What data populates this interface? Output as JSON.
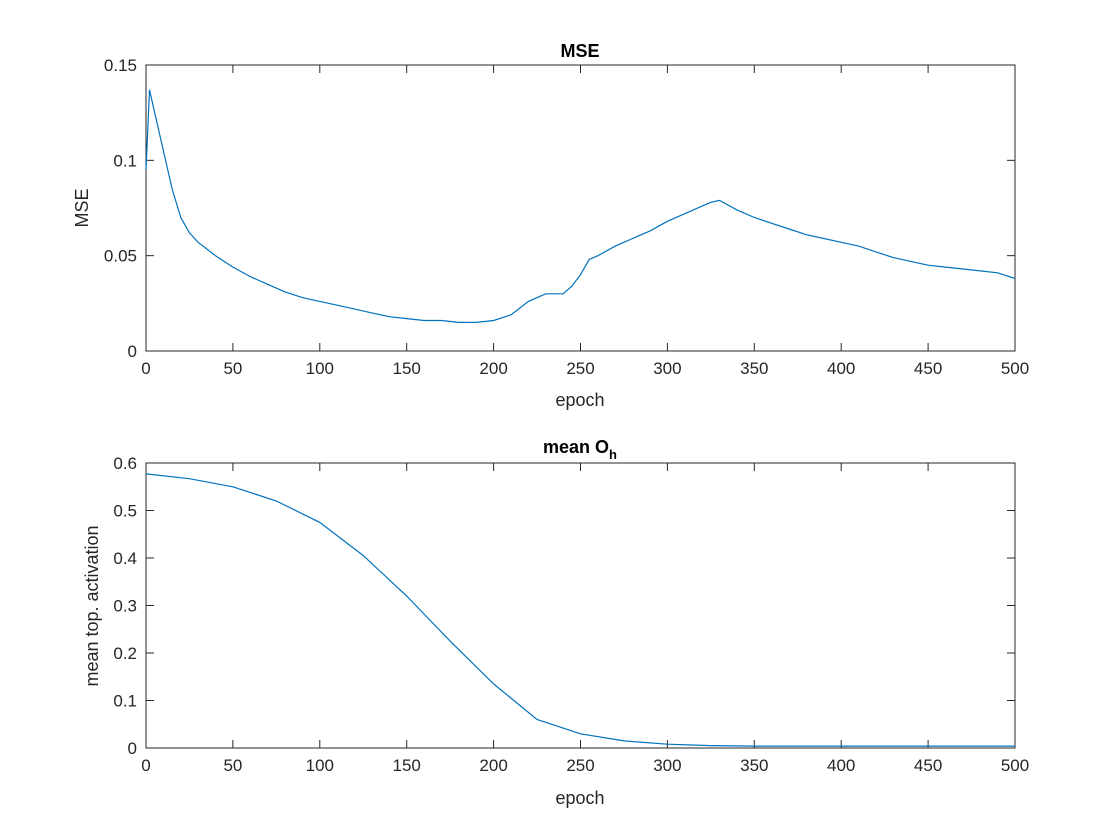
{
  "line_color": "#0072BD",
  "chart_data": [
    {
      "type": "line",
      "title": "MSE",
      "xlabel": "epoch",
      "ylabel": "MSE",
      "xlim": [
        0,
        500
      ],
      "ylim": [
        0,
        0.15
      ],
      "xticks": [
        0,
        50,
        100,
        150,
        200,
        250,
        300,
        350,
        400,
        450,
        500
      ],
      "yticks": [
        0,
        0.05,
        0.1,
        0.15
      ],
      "ytick_labels": [
        "0",
        "0.05",
        "0.1",
        "0.15"
      ],
      "grid": false,
      "series": [
        {
          "x": [
            0,
            2,
            5,
            10,
            15,
            20,
            25,
            30,
            40,
            50,
            60,
            70,
            80,
            90,
            100,
            110,
            120,
            130,
            140,
            150,
            160,
            170,
            180,
            190,
            200,
            210,
            220,
            230,
            240,
            245,
            250,
            255,
            260,
            270,
            280,
            290,
            300,
            310,
            320,
            325,
            330,
            340,
            350,
            360,
            370,
            380,
            390,
            400,
            410,
            420,
            430,
            440,
            450,
            460,
            470,
            480,
            490,
            500
          ],
          "y": [
            0.095,
            0.137,
            0.125,
            0.105,
            0.085,
            0.07,
            0.062,
            0.057,
            0.05,
            0.044,
            0.039,
            0.035,
            0.031,
            0.028,
            0.026,
            0.024,
            0.022,
            0.02,
            0.018,
            0.017,
            0.016,
            0.016,
            0.015,
            0.015,
            0.016,
            0.019,
            0.026,
            0.03,
            0.03,
            0.034,
            0.04,
            0.048,
            0.05,
            0.055,
            0.059,
            0.063,
            0.068,
            0.072,
            0.076,
            0.078,
            0.079,
            0.074,
            0.07,
            0.067,
            0.064,
            0.061,
            0.059,
            0.057,
            0.055,
            0.052,
            0.049,
            0.047,
            0.045,
            0.044,
            0.043,
            0.042,
            0.041,
            0.038
          ]
        }
      ]
    },
    {
      "type": "line",
      "title": "mean O",
      "title_subscript": "h",
      "xlabel": "epoch",
      "ylabel": "mean top. activation",
      "xlim": [
        0,
        500
      ],
      "ylim": [
        0,
        0.6
      ],
      "xticks": [
        0,
        50,
        100,
        150,
        200,
        250,
        300,
        350,
        400,
        450,
        500
      ],
      "yticks": [
        0,
        0.1,
        0.2,
        0.3,
        0.4,
        0.5,
        0.6
      ],
      "ytick_labels": [
        "0",
        "0.1",
        "0.2",
        "0.3",
        "0.4",
        "0.5",
        "0.6"
      ],
      "grid": false,
      "series": [
        {
          "x": [
            0,
            25,
            50,
            75,
            100,
            125,
            150,
            175,
            200,
            225,
            250,
            275,
            300,
            325,
            350,
            400,
            450,
            500
          ],
          "y": [
            0.577,
            0.567,
            0.55,
            0.52,
            0.475,
            0.405,
            0.32,
            0.225,
            0.135,
            0.06,
            0.03,
            0.015,
            0.008,
            0.005,
            0.004,
            0.004,
            0.004,
            0.004
          ]
        }
      ]
    }
  ]
}
